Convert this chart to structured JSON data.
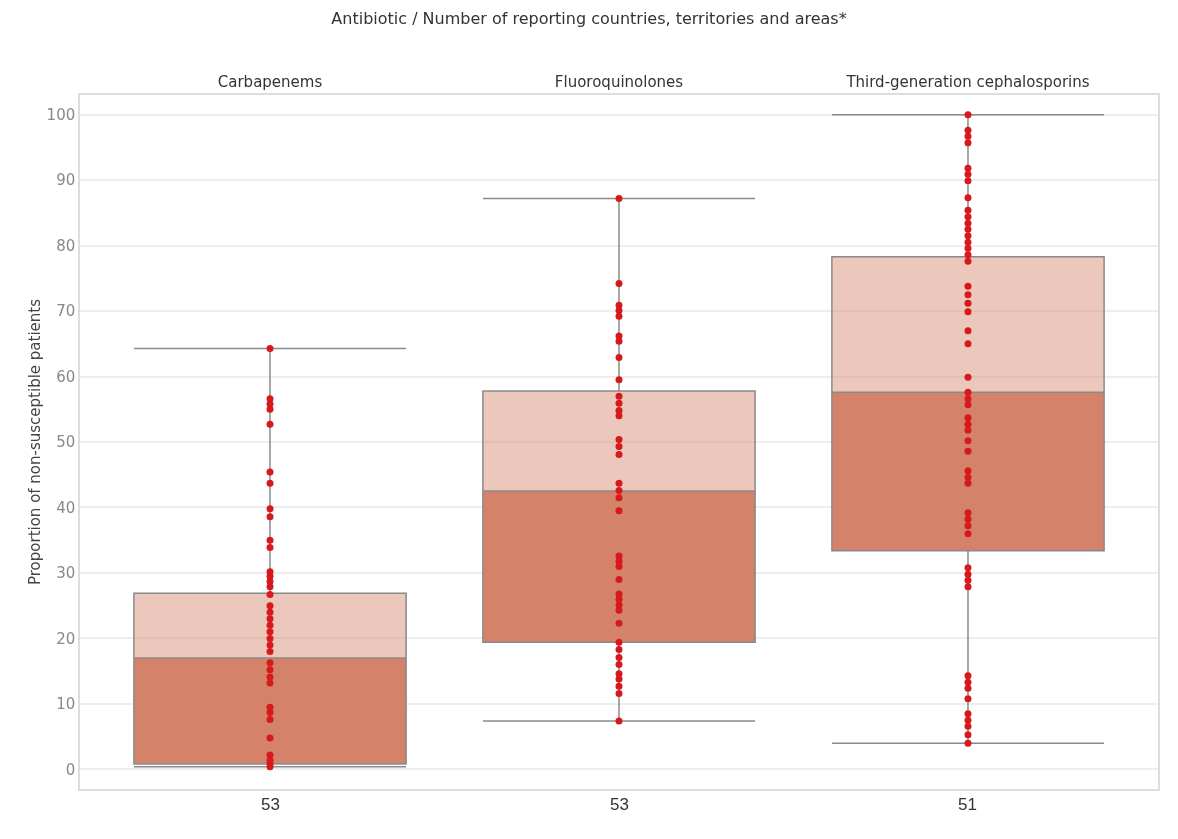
{
  "chart_data": {
    "type": "box",
    "title": "Antibiotic / Number of reporting countries, territories and areas*",
    "ylabel": "Proportion of non-susceptible patients",
    "categories": [
      "Carbapenems",
      "Fluoroquinolones",
      "Third-generation cephalosporins"
    ],
    "ylim": [
      -3,
      103
    ],
    "yticks": [
      0,
      10,
      20,
      30,
      40,
      50,
      60,
      70,
      80,
      90,
      100
    ],
    "grid": "y",
    "marker": "circle",
    "annotations": [
      "53",
      "53",
      "51"
    ],
    "series": [
      {
        "color": "#d4826a",
        "boxes": [
          {
            "low": 0.4,
            "q1": 0.8,
            "median": 17,
            "q3": 26.9,
            "high": 64.3
          },
          {
            "low": 7.4,
            "q1": 19.4,
            "median": 42.5,
            "q3": 57.8,
            "high": 87.2
          },
          {
            "low": 4,
            "q1": 33.4,
            "median": 57.6,
            "q3": 78.3,
            "high": 100
          }
        ]
      },
      {
        "type": "scatter",
        "color": "#d7191c",
        "x": [
          "Carbapenems",
          "Carbapenems",
          "Carbapenems",
          "Carbapenems",
          "Carbapenems",
          "Carbapenems",
          "Carbapenems",
          "Carbapenems",
          "Carbapenems",
          "Carbapenems",
          "Carbapenems",
          "Carbapenems",
          "Carbapenems",
          "Carbapenems",
          "Carbapenems",
          "Carbapenems",
          "Carbapenems",
          "Carbapenems",
          "Carbapenems",
          "Carbapenems",
          "Carbapenems",
          "Carbapenems",
          "Carbapenems",
          "Carbapenems",
          "Carbapenems",
          "Carbapenems",
          "Carbapenems",
          "Carbapenems",
          "Carbapenems",
          "Carbapenems",
          "Carbapenems",
          "Carbapenems",
          "Carbapenems",
          "Carbapenems",
          "Carbapenems",
          "Carbapenems",
          "Fluoroquinolones",
          "Fluoroquinolones",
          "Fluoroquinolones",
          "Fluoroquinolones",
          "Fluoroquinolones",
          "Fluoroquinolones",
          "Fluoroquinolones",
          "Fluoroquinolones",
          "Fluoroquinolones",
          "Fluoroquinolones",
          "Fluoroquinolones",
          "Fluoroquinolones",
          "Fluoroquinolones",
          "Fluoroquinolones",
          "Fluoroquinolones",
          "Fluoroquinolones",
          "Fluoroquinolones",
          "Fluoroquinolones",
          "Fluoroquinolones",
          "Fluoroquinolones",
          "Fluoroquinolones",
          "Fluoroquinolones",
          "Fluoroquinolones",
          "Fluoroquinolones",
          "Fluoroquinolones",
          "Fluoroquinolones",
          "Fluoroquinolones",
          "Fluoroquinolones",
          "Fluoroquinolones",
          "Fluoroquinolones",
          "Fluoroquinolones",
          "Fluoroquinolones",
          "Fluoroquinolones",
          "Fluoroquinolones",
          "Fluoroquinolones",
          "Fluoroquinolones",
          "Fluoroquinolones",
          "Fluoroquinolones",
          "Third-generation cephalosporins",
          "Third-generation cephalosporins",
          "Third-generation cephalosporins",
          "Third-generation cephalosporins",
          "Third-generation cephalosporins",
          "Third-generation cephalosporins",
          "Third-generation cephalosporins",
          "Third-generation cephalosporins",
          "Third-generation cephalosporins",
          "Third-generation cephalosporins",
          "Third-generation cephalosporins",
          "Third-generation cephalosporins",
          "Third-generation cephalosporins",
          "Third-generation cephalosporins",
          "Third-generation cephalosporins",
          "Third-generation cephalosporins",
          "Third-generation cephalosporins",
          "Third-generation cephalosporins",
          "Third-generation cephalosporins",
          "Third-generation cephalosporins",
          "Third-generation cephalosporins",
          "Third-generation cephalosporins",
          "Third-generation cephalosporins",
          "Third-generation cephalosporins",
          "Third-generation cephalosporins",
          "Third-generation cephalosporins",
          "Third-generation cephalosporins",
          "Third-generation cephalosporins",
          "Third-generation cephalosporins",
          "Third-generation cephalosporins",
          "Third-generation cephalosporins",
          "Third-generation cephalosporins",
          "Third-generation cephalosporins",
          "Third-generation cephalosporins",
          "Third-generation cephalosporins",
          "Third-generation cephalosporins",
          "Third-generation cephalosporins",
          "Third-generation cephalosporins",
          "Third-generation cephalosporins",
          "Third-generation cephalosporins",
          "Third-generation cephalosporins",
          "Third-generation cephalosporins",
          "Third-generation cephalosporins",
          "Third-generation cephalosporins",
          "Third-generation cephalosporins",
          "Third-generation cephalosporins",
          "Third-generation cephalosporins",
          "Third-generation cephalosporins",
          "Third-generation cephalosporins",
          "Third-generation cephalosporins",
          "Third-generation cephalosporins",
          "Third-generation cephalosporins"
        ],
        "values": [
          64.3,
          56.6,
          55.8,
          55,
          52.7,
          45.4,
          43.7,
          39.8,
          38.6,
          35,
          33.9,
          30.2,
          29.5,
          28.7,
          27.9,
          26.7,
          25,
          24,
          23,
          22,
          21,
          20,
          19,
          18,
          16.3,
          15.2,
          14.1,
          13.2,
          9.5,
          8.7,
          7.6,
          4.8,
          2.2,
          1.4,
          0.9,
          0.4,
          87.2,
          74.2,
          70.9,
          70.1,
          69.2,
          66.2,
          65.4,
          62.9,
          59.5,
          57,
          55.9,
          54.8,
          54,
          50.4,
          49.3,
          48.1,
          43.7,
          42.6,
          41.5,
          39.5,
          32.6,
          31.8,
          31,
          29,
          26.8,
          26,
          25.1,
          24.3,
          22.3,
          19.4,
          18.3,
          17.1,
          16,
          14.6,
          13.8,
          12.7,
          11.6,
          7.4,
          100,
          97.6,
          96.7,
          95.7,
          91.8,
          90.9,
          89.9,
          87.3,
          85.4,
          84.4,
          83.4,
          82.5,
          81.5,
          80.5,
          79.6,
          78.6,
          77.6,
          73.8,
          72.5,
          71.2,
          69.9,
          67,
          65,
          59.9,
          57.6,
          56.6,
          55.7,
          53.7,
          52.7,
          51.8,
          50.2,
          48.6,
          45.6,
          44.6,
          43.7,
          39.2,
          38.2,
          37.2,
          36,
          30.8,
          29.8,
          28.9,
          27.9,
          14.3,
          13.3,
          12.4,
          10.8,
          8.5,
          7.5,
          6.6,
          5.3,
          4
        ]
      }
    ]
  }
}
